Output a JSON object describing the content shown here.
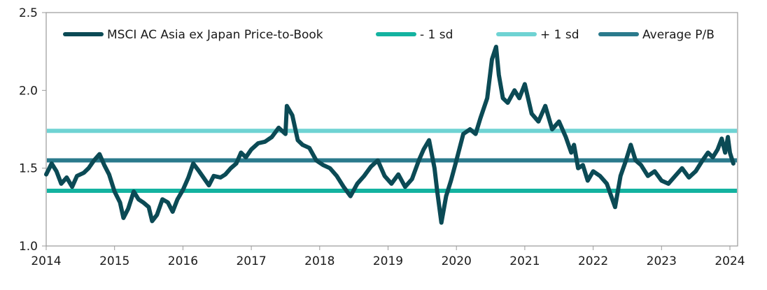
{
  "chart_data": {
    "type": "line",
    "title": "",
    "xlabel": "",
    "ylabel": "",
    "xlim": [
      2014,
      2024.1
    ],
    "ylim": [
      1.0,
      2.5
    ],
    "y_ticks": [
      "1.0",
      "1.5",
      "2.0",
      "2.5"
    ],
    "x_ticks": [
      "2014",
      "2015",
      "2016",
      "2017",
      "2018",
      "2019",
      "2020",
      "2021",
      "2022",
      "2023",
      "2024"
    ],
    "grid": false,
    "legend_position": "top",
    "series": [
      {
        "name": "MSCI AC Asia ex Japan Price-to-Book",
        "color": "#0b4a55",
        "x": [
          2014.0,
          2014.08,
          2014.15,
          2014.22,
          2014.3,
          2014.38,
          2014.45,
          2014.55,
          2014.62,
          2014.7,
          2014.78,
          2014.85,
          2014.92,
          2015.0,
          2015.08,
          2015.13,
          2015.2,
          2015.28,
          2015.35,
          2015.42,
          2015.5,
          2015.55,
          2015.62,
          2015.7,
          2015.78,
          2015.85,
          2015.92,
          2016.0,
          2016.08,
          2016.15,
          2016.22,
          2016.3,
          2016.38,
          2016.45,
          2016.55,
          2016.62,
          2016.7,
          2016.78,
          2016.85,
          2016.92,
          2017.0,
          2017.1,
          2017.2,
          2017.3,
          2017.4,
          2017.5,
          2017.52,
          2017.6,
          2017.68,
          2017.75,
          2017.85,
          2017.95,
          2018.05,
          2018.15,
          2018.25,
          2018.35,
          2018.45,
          2018.55,
          2018.65,
          2018.75,
          2018.85,
          2018.95,
          2019.05,
          2019.15,
          2019.25,
          2019.35,
          2019.45,
          2019.52,
          2019.6,
          2019.68,
          2019.72,
          2019.78,
          2019.85,
          2019.92,
          2020.0,
          2020.1,
          2020.2,
          2020.28,
          2020.35,
          2020.45,
          2020.52,
          2020.58,
          2020.62,
          2020.68,
          2020.75,
          2020.85,
          2020.92,
          2021.0,
          2021.1,
          2021.2,
          2021.3,
          2021.4,
          2021.5,
          2021.6,
          2021.68,
          2021.72,
          2021.78,
          2021.85,
          2021.92,
          2022.0,
          2022.1,
          2022.2,
          2022.28,
          2022.32,
          2022.4,
          2022.48,
          2022.55,
          2022.62,
          2022.7,
          2022.8,
          2022.9,
          2023.0,
          2023.1,
          2023.2,
          2023.3,
          2023.4,
          2023.5,
          2023.6,
          2023.68,
          2023.75,
          2023.82,
          2023.88,
          2023.93,
          2023.97,
          2024.0,
          2024.05
        ],
        "values": [
          1.46,
          1.53,
          1.48,
          1.4,
          1.44,
          1.38,
          1.45,
          1.47,
          1.5,
          1.55,
          1.59,
          1.52,
          1.46,
          1.35,
          1.28,
          1.18,
          1.24,
          1.35,
          1.3,
          1.28,
          1.25,
          1.16,
          1.2,
          1.3,
          1.28,
          1.22,
          1.3,
          1.36,
          1.44,
          1.53,
          1.49,
          1.44,
          1.39,
          1.45,
          1.44,
          1.46,
          1.5,
          1.53,
          1.6,
          1.57,
          1.62,
          1.66,
          1.67,
          1.7,
          1.76,
          1.72,
          1.9,
          1.84,
          1.68,
          1.65,
          1.63,
          1.55,
          1.52,
          1.5,
          1.45,
          1.38,
          1.32,
          1.4,
          1.45,
          1.51,
          1.55,
          1.45,
          1.4,
          1.46,
          1.38,
          1.43,
          1.55,
          1.62,
          1.68,
          1.5,
          1.35,
          1.15,
          1.32,
          1.42,
          1.55,
          1.72,
          1.75,
          1.72,
          1.82,
          1.95,
          2.2,
          2.28,
          2.1,
          1.95,
          1.92,
          2.0,
          1.95,
          2.04,
          1.85,
          1.8,
          1.9,
          1.75,
          1.8,
          1.7,
          1.6,
          1.65,
          1.5,
          1.52,
          1.42,
          1.48,
          1.45,
          1.4,
          1.3,
          1.25,
          1.45,
          1.55,
          1.65,
          1.55,
          1.52,
          1.45,
          1.48,
          1.42,
          1.4,
          1.45,
          1.5,
          1.44,
          1.48,
          1.55,
          1.6,
          1.57,
          1.62,
          1.69,
          1.6,
          1.7,
          1.6,
          1.53
        ]
      },
      {
        "name": "- 1 sd",
        "color": "#14b3a0",
        "constant": 1.355
      },
      {
        "name": "+ 1 sd",
        "color": "#6fd3d3",
        "constant": 1.74
      },
      {
        "name": "Average P/B",
        "color": "#2a7a8c",
        "constant": 1.55
      }
    ]
  }
}
